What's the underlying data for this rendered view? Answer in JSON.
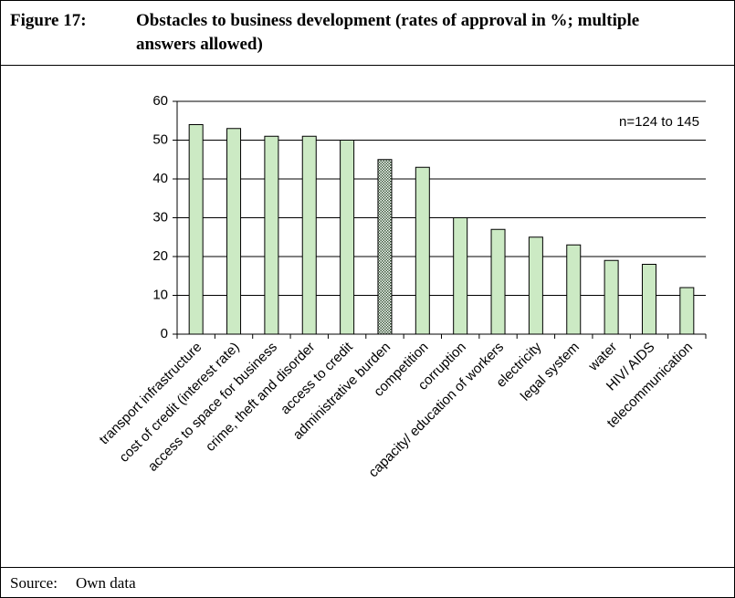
{
  "figure_label": "Figure 17:",
  "source_label": "Source:",
  "source": "Own data",
  "chart_data": {
    "type": "bar",
    "title": "Obstacles to business development (rates of approval in %; multiple answers allowed)",
    "annotation": "n=124 to 145",
    "categories": [
      "transport infrastructure",
      "cost of credit (interest rate)",
      "access to space for business",
      "crime, theft and disorder",
      "access to credit",
      "administrative burden",
      "competition",
      "corruption",
      "capacity/ education of workers",
      "electricity",
      "legal system",
      "water",
      "HIV/ AIDS",
      "telecommunication"
    ],
    "values": [
      54,
      53,
      51,
      51,
      50,
      45,
      43,
      30,
      27,
      25,
      23,
      19,
      18,
      12
    ],
    "color": "#cceac4",
    "bar_fills": [
      "solid",
      "solid",
      "solid",
      "solid",
      "solid",
      "dotted",
      "solid",
      "solid",
      "solid",
      "solid",
      "solid",
      "solid",
      "solid",
      "solid"
    ],
    "ylim": [
      0,
      60
    ],
    "yticks": [
      0,
      10,
      20,
      30,
      40,
      50,
      60
    ],
    "grid": true
  }
}
